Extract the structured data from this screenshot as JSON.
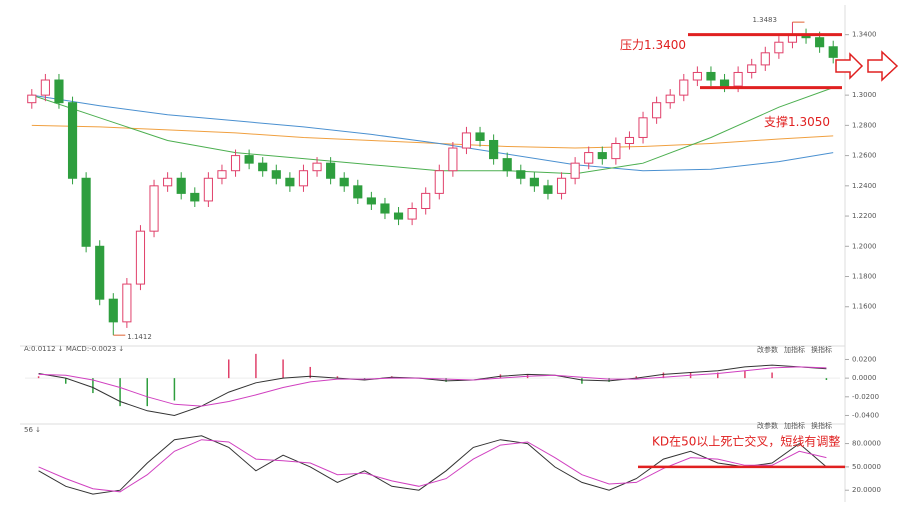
{
  "chart_data": [
    {
      "type": "candlestick",
      "ylim": [
        1.138,
        1.355
      ],
      "yticks": [
        {
          "value": 1.34,
          "label": "1.3400"
        },
        {
          "value": 1.3,
          "label": "1.3000"
        },
        {
          "value": 1.28,
          "label": "1.2800"
        },
        {
          "value": 1.26,
          "label": "1.2600"
        },
        {
          "value": 1.24,
          "label": "1.2400"
        },
        {
          "value": 1.22,
          "label": "1.2200"
        },
        {
          "value": 1.2,
          "label": "1.2000"
        },
        {
          "value": 1.18,
          "label": "1.1800"
        },
        {
          "value": 1.16,
          "label": "1.1600"
        }
      ],
      "up_color": "#e0406a",
      "down_color": "#2e9e3e",
      "ohlc": [
        [
          1.295,
          1.304,
          1.291,
          1.3
        ],
        [
          1.3,
          1.314,
          1.296,
          1.31
        ],
        [
          1.31,
          1.314,
          1.291,
          1.295
        ],
        [
          1.295,
          1.299,
          1.241,
          1.245
        ],
        [
          1.245,
          1.249,
          1.196,
          1.2
        ],
        [
          1.2,
          1.204,
          1.161,
          1.165
        ],
        [
          1.165,
          1.169,
          1.1412,
          1.15
        ],
        [
          1.15,
          1.179,
          1.146,
          1.175
        ],
        [
          1.175,
          1.214,
          1.171,
          1.21
        ],
        [
          1.21,
          1.244,
          1.206,
          1.24
        ],
        [
          1.24,
          1.249,
          1.236,
          1.245
        ],
        [
          1.245,
          1.249,
          1.231,
          1.235
        ],
        [
          1.235,
          1.239,
          1.226,
          1.23
        ],
        [
          1.23,
          1.249,
          1.226,
          1.245
        ],
        [
          1.245,
          1.254,
          1.241,
          1.25
        ],
        [
          1.25,
          1.264,
          1.246,
          1.26
        ],
        [
          1.26,
          1.264,
          1.251,
          1.255
        ],
        [
          1.255,
          1.259,
          1.246,
          1.25
        ],
        [
          1.25,
          1.254,
          1.241,
          1.245
        ],
        [
          1.245,
          1.249,
          1.236,
          1.24
        ],
        [
          1.24,
          1.254,
          1.236,
          1.25
        ],
        [
          1.25,
          1.259,
          1.246,
          1.255
        ],
        [
          1.255,
          1.259,
          1.241,
          1.245
        ],
        [
          1.245,
          1.249,
          1.236,
          1.24
        ],
        [
          1.24,
          1.244,
          1.228,
          1.232
        ],
        [
          1.232,
          1.236,
          1.224,
          1.228
        ],
        [
          1.228,
          1.232,
          1.218,
          1.222
        ],
        [
          1.222,
          1.226,
          1.214,
          1.218
        ],
        [
          1.218,
          1.229,
          1.214,
          1.225
        ],
        [
          1.225,
          1.239,
          1.221,
          1.235
        ],
        [
          1.235,
          1.254,
          1.231,
          1.25
        ],
        [
          1.25,
          1.269,
          1.246,
          1.265
        ],
        [
          1.265,
          1.279,
          1.261,
          1.275
        ],
        [
          1.275,
          1.279,
          1.266,
          1.27
        ],
        [
          1.27,
          1.274,
          1.254,
          1.258
        ],
        [
          1.258,
          1.262,
          1.246,
          1.25
        ],
        [
          1.25,
          1.254,
          1.241,
          1.245
        ],
        [
          1.245,
          1.249,
          1.236,
          1.24
        ],
        [
          1.24,
          1.244,
          1.231,
          1.235
        ],
        [
          1.235,
          1.249,
          1.231,
          1.245
        ],
        [
          1.245,
          1.259,
          1.241,
          1.255
        ],
        [
          1.255,
          1.266,
          1.251,
          1.262
        ],
        [
          1.262,
          1.266,
          1.254,
          1.258
        ],
        [
          1.258,
          1.272,
          1.254,
          1.268
        ],
        [
          1.268,
          1.276,
          1.264,
          1.272
        ],
        [
          1.272,
          1.289,
          1.268,
          1.285
        ],
        [
          1.285,
          1.299,
          1.281,
          1.295
        ],
        [
          1.295,
          1.304,
          1.291,
          1.3
        ],
        [
          1.3,
          1.314,
          1.296,
          1.31
        ],
        [
          1.31,
          1.319,
          1.306,
          1.315
        ],
        [
          1.315,
          1.319,
          1.306,
          1.31
        ],
        [
          1.31,
          1.314,
          1.302,
          1.306
        ],
        [
          1.306,
          1.319,
          1.302,
          1.315
        ],
        [
          1.315,
          1.324,
          1.311,
          1.32
        ],
        [
          1.32,
          1.332,
          1.316,
          1.328
        ],
        [
          1.328,
          1.339,
          1.324,
          1.335
        ],
        [
          1.335,
          1.3483,
          1.331,
          1.34
        ],
        [
          1.34,
          1.344,
          1.334,
          1.338
        ],
        [
          1.338,
          1.342,
          1.328,
          1.332
        ],
        [
          1.332,
          1.336,
          1.321,
          1.325
        ]
      ],
      "lines": [
        {
          "color": "#f0a040",
          "x": [
            0,
            5,
            10,
            15,
            20,
            25,
            30,
            35,
            40,
            45,
            50,
            55,
            59
          ],
          "values": [
            1.28,
            1.279,
            1.277,
            1.275,
            1.272,
            1.27,
            1.268,
            1.266,
            1.265,
            1.266,
            1.268,
            1.271,
            1.273
          ]
        },
        {
          "color": "#4a90d0",
          "x": [
            0,
            5,
            10,
            15,
            20,
            25,
            30,
            35,
            40,
            45,
            50,
            55,
            59
          ],
          "values": [
            1.3,
            1.293,
            1.287,
            1.283,
            1.279,
            1.274,
            1.268,
            1.261,
            1.254,
            1.25,
            1.251,
            1.256,
            1.262
          ]
        },
        {
          "color": "#4caf50",
          "x": [
            0,
            5,
            10,
            15,
            20,
            25,
            30,
            35,
            40,
            45,
            50,
            55,
            59
          ],
          "values": [
            1.3,
            1.285,
            1.27,
            1.262,
            1.258,
            1.254,
            1.25,
            1.25,
            1.248,
            1.255,
            1.272,
            1.292,
            1.305
          ]
        }
      ],
      "annotations": [
        {
          "label": "1.3483",
          "value": 1.3483,
          "x": 56
        },
        {
          "label": "1.1412",
          "value": 1.1412,
          "x": 6
        }
      ],
      "levels": [
        {
          "label": "压力1.3400",
          "value": 1.34,
          "color": "#e02020"
        },
        {
          "label": "支撑1.3050",
          "value": 1.305,
          "color": "#e02020"
        }
      ]
    },
    {
      "type": "macd",
      "label": "A:0.0112 ↓ MACD:-0.0023 ↓",
      "buttons": [
        "改参数",
        "加指标",
        "换指标"
      ],
      "ylim": [
        -0.047,
        0.028
      ],
      "yticks": [
        {
          "value": 0.02,
          "label": "0.0200"
        },
        {
          "value": 0,
          "label": "0.0000"
        },
        {
          "value": -0.02,
          "label": "-0.0200"
        },
        {
          "value": -0.04,
          "label": "-0.0400"
        }
      ],
      "histogram": [
        0.002,
        -0.006,
        -0.016,
        -0.03,
        -0.03,
        -0.024,
        0,
        0.02,
        0.026,
        0.02,
        0.012,
        0.002,
        -0.002,
        0.002,
        0,
        -0.004,
        0,
        0.004,
        0.004,
        0,
        -0.006,
        -0.004,
        0.002,
        0.006,
        0.006,
        0.006,
        0.008,
        0.006,
        0,
        -0.002
      ],
      "series": [
        {
          "color": "#333333",
          "values": [
            0.005,
            0,
            -0.01,
            -0.025,
            -0.035,
            -0.04,
            -0.03,
            -0.015,
            -0.005,
            0,
            0.002,
            0,
            -0.002,
            0.001,
            0,
            -0.003,
            -0.002,
            0.002,
            0.004,
            0.003,
            -0.002,
            -0.003,
            0,
            0.004,
            0.006,
            0.008,
            0.012,
            0.014,
            0.012,
            0.01
          ]
        },
        {
          "color": "#d040c0",
          "values": [
            0.004,
            0.003,
            -0.002,
            -0.01,
            -0.02,
            -0.028,
            -0.03,
            -0.025,
            -0.018,
            -0.01,
            -0.004,
            -0.001,
            -0.001,
            0,
            0,
            -0.001,
            -0.002,
            0,
            0.002,
            0.003,
            0.001,
            -0.001,
            -0.001,
            0.001,
            0.003,
            0.005,
            0.008,
            0.011,
            0.012,
            0.011
          ]
        }
      ]
    },
    {
      "type": "kd",
      "label": "56 ↓",
      "buttons": [
        "改参数",
        "加指标",
        "换指标"
      ],
      "ylim": [
        10,
        100
      ],
      "yticks": [
        {
          "value": 80,
          "label": "80.0000"
        },
        {
          "value": 50,
          "label": "50.0000"
        },
        {
          "value": 20,
          "label": "20.0000"
        }
      ],
      "series": [
        {
          "color": "#333333",
          "values": [
            45,
            25,
            15,
            20,
            55,
            85,
            90,
            75,
            45,
            65,
            50,
            30,
            45,
            25,
            20,
            45,
            75,
            85,
            80,
            50,
            30,
            20,
            35,
            60,
            70,
            55,
            50,
            55,
            80,
            50
          ]
        },
        {
          "color": "#d040c0",
          "values": [
            50,
            35,
            22,
            18,
            40,
            70,
            85,
            82,
            60,
            58,
            55,
            40,
            42,
            32,
            25,
            35,
            60,
            78,
            82,
            62,
            40,
            28,
            30,
            48,
            62,
            60,
            52,
            52,
            70,
            62
          ]
        }
      ],
      "level": {
        "value": 50,
        "color": "#e02020"
      },
      "annotation": "KD在50以上死亡交叉，短线有调整"
    }
  ]
}
